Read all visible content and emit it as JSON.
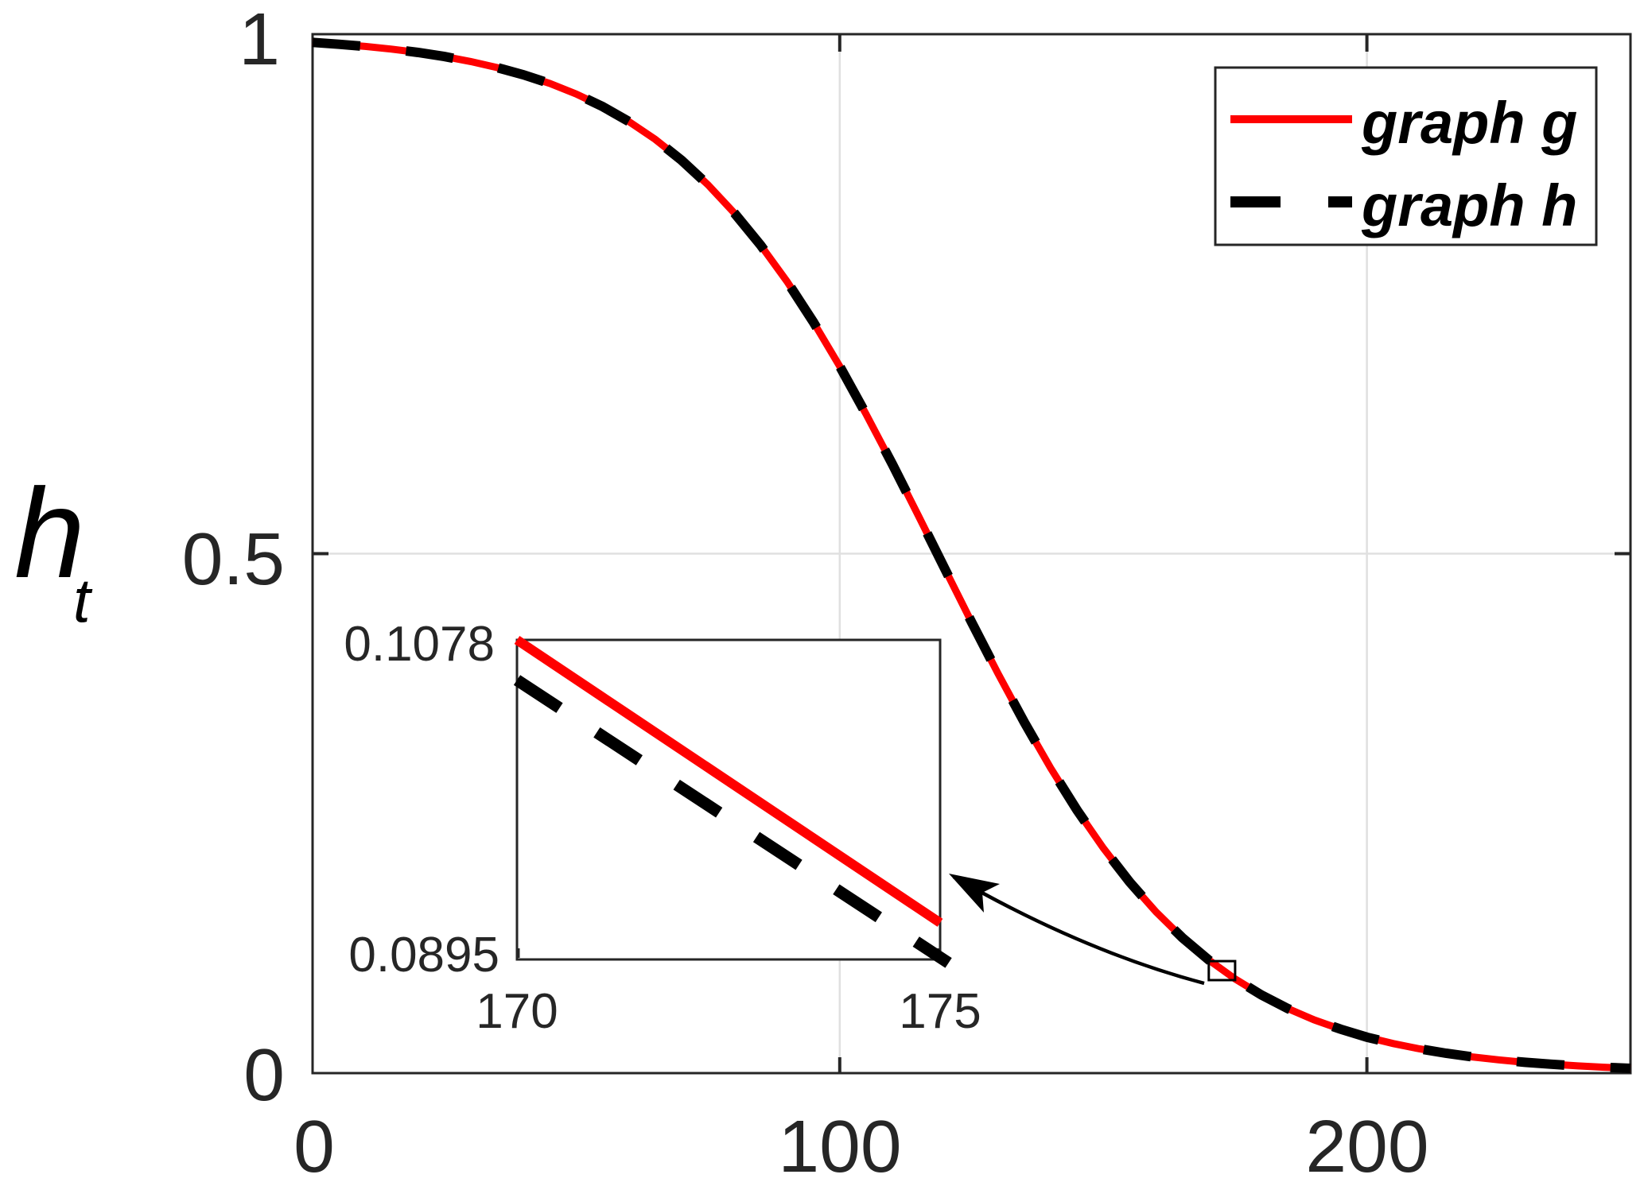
{
  "labels": {
    "ylabel_main": "h",
    "ylabel_sub": "t",
    "ytick_top": "1",
    "ytick_mid": "0.5",
    "ytick_bottom": "0",
    "xtick_0": "0",
    "xtick_100": "100",
    "xtick_200": "200",
    "inset_ymax": "0.1078",
    "inset_ymin": "0.0895",
    "inset_xmin": "170",
    "inset_xmax": "175"
  },
  "legend": {
    "entries": [
      {
        "label": "graph g",
        "color": "#ff0000",
        "line_style": "solid"
      },
      {
        "label": "graph h",
        "color": "#000000",
        "line_style": "dashed"
      }
    ]
  },
  "colors": {
    "graph_g": "#ff0000",
    "graph_h": "#000000",
    "axis": "#262626",
    "grid": "#e0e0e0",
    "background": "#ffffff"
  },
  "chart_data": {
    "type": "line",
    "title": "",
    "xlabel": "",
    "ylabel": "h_t",
    "xlim": [
      0,
      250
    ],
    "ylim": [
      0,
      1
    ],
    "x_ticks": {
      "values": [
        0,
        100,
        200
      ],
      "labels": [
        "0",
        "100",
        "200"
      ]
    },
    "y_ticks": {
      "values": [
        0,
        0.5,
        1
      ],
      "labels": [
        "0",
        "0.5",
        "1"
      ]
    },
    "grid": true,
    "legend_position": "northeast",
    "x": [
      0,
      5,
      10,
      15,
      20,
      25,
      30,
      35,
      40,
      45,
      50,
      55,
      60,
      65,
      70,
      75,
      80,
      85,
      90,
      95,
      100,
      105,
      110,
      115,
      120,
      125,
      130,
      135,
      140,
      145,
      150,
      155,
      160,
      165,
      170,
      175,
      180,
      185,
      190,
      195,
      200,
      205,
      210,
      215,
      220,
      225,
      230,
      235,
      240,
      245,
      250
    ],
    "series": [
      {
        "name": "graph g",
        "color": "#ff0000",
        "line_style": "solid",
        "y": [
          0.9921,
          0.9903,
          0.9882,
          0.9856,
          0.9824,
          0.9785,
          0.9737,
          0.9679,
          0.9609,
          0.9526,
          0.9425,
          0.9304,
          0.9159,
          0.8988,
          0.8786,
          0.8551,
          0.8279,
          0.7969,
          0.762,
          0.7229,
          0.6803,
          0.6343,
          0.5859,
          0.5357,
          0.4847,
          0.4341,
          0.3849,
          0.3378,
          0.2937,
          0.2532,
          0.2166,
          0.1839,
          0.1552,
          0.1303,
          0.1089,
          0.0907,
          0.0752,
          0.0621,
          0.0513,
          0.0423,
          0.0346,
          0.0285,
          0.0233,
          0.0191,
          0.0156,
          0.0128,
          0.0104,
          0.0086,
          0.007,
          0.0057,
          0.0046
        ]
      },
      {
        "name": "graph h",
        "color": "#000000",
        "line_style": "dashed",
        "note": "visually coincides with graph g in the main axes",
        "y": [
          0.9921,
          0.9903,
          0.9882,
          0.9856,
          0.9824,
          0.9785,
          0.9737,
          0.9679,
          0.9609,
          0.9526,
          0.9425,
          0.9304,
          0.9159,
          0.8988,
          0.8786,
          0.8551,
          0.8279,
          0.7969,
          0.762,
          0.7229,
          0.6803,
          0.6343,
          0.5859,
          0.5357,
          0.4847,
          0.4341,
          0.3849,
          0.3378,
          0.2937,
          0.2532,
          0.2166,
          0.1839,
          0.1552,
          0.1303,
          0.1089,
          0.0907,
          0.0752,
          0.0621,
          0.0513,
          0.0423,
          0.0346,
          0.0285,
          0.0233,
          0.0191,
          0.0156,
          0.0128,
          0.0104,
          0.0086,
          0.007,
          0.0057,
          0.0046
        ]
      }
    ],
    "inset": {
      "xlim": [
        170,
        175
      ],
      "ylim": [
        0.0895,
        0.1078
      ],
      "x_tick_labels": [
        "170",
        "175"
      ],
      "y_tick_labels": [
        "0.0895",
        "0.1078"
      ],
      "series": [
        {
          "name": "graph g",
          "color": "#ff0000",
          "line_style": "solid",
          "points": [
            [
              170,
              0.1078
            ],
            [
              175,
              0.0916
            ]
          ]
        },
        {
          "name": "graph h",
          "color": "#000000",
          "line_style": "dashed",
          "points": [
            [
              170,
              0.1055
            ],
            [
              175.1,
              0.0893
            ]
          ]
        }
      ],
      "callout_rect": {
        "x": [
          170,
          175
        ],
        "y": [
          0.0895,
          0.1078
        ]
      }
    }
  }
}
